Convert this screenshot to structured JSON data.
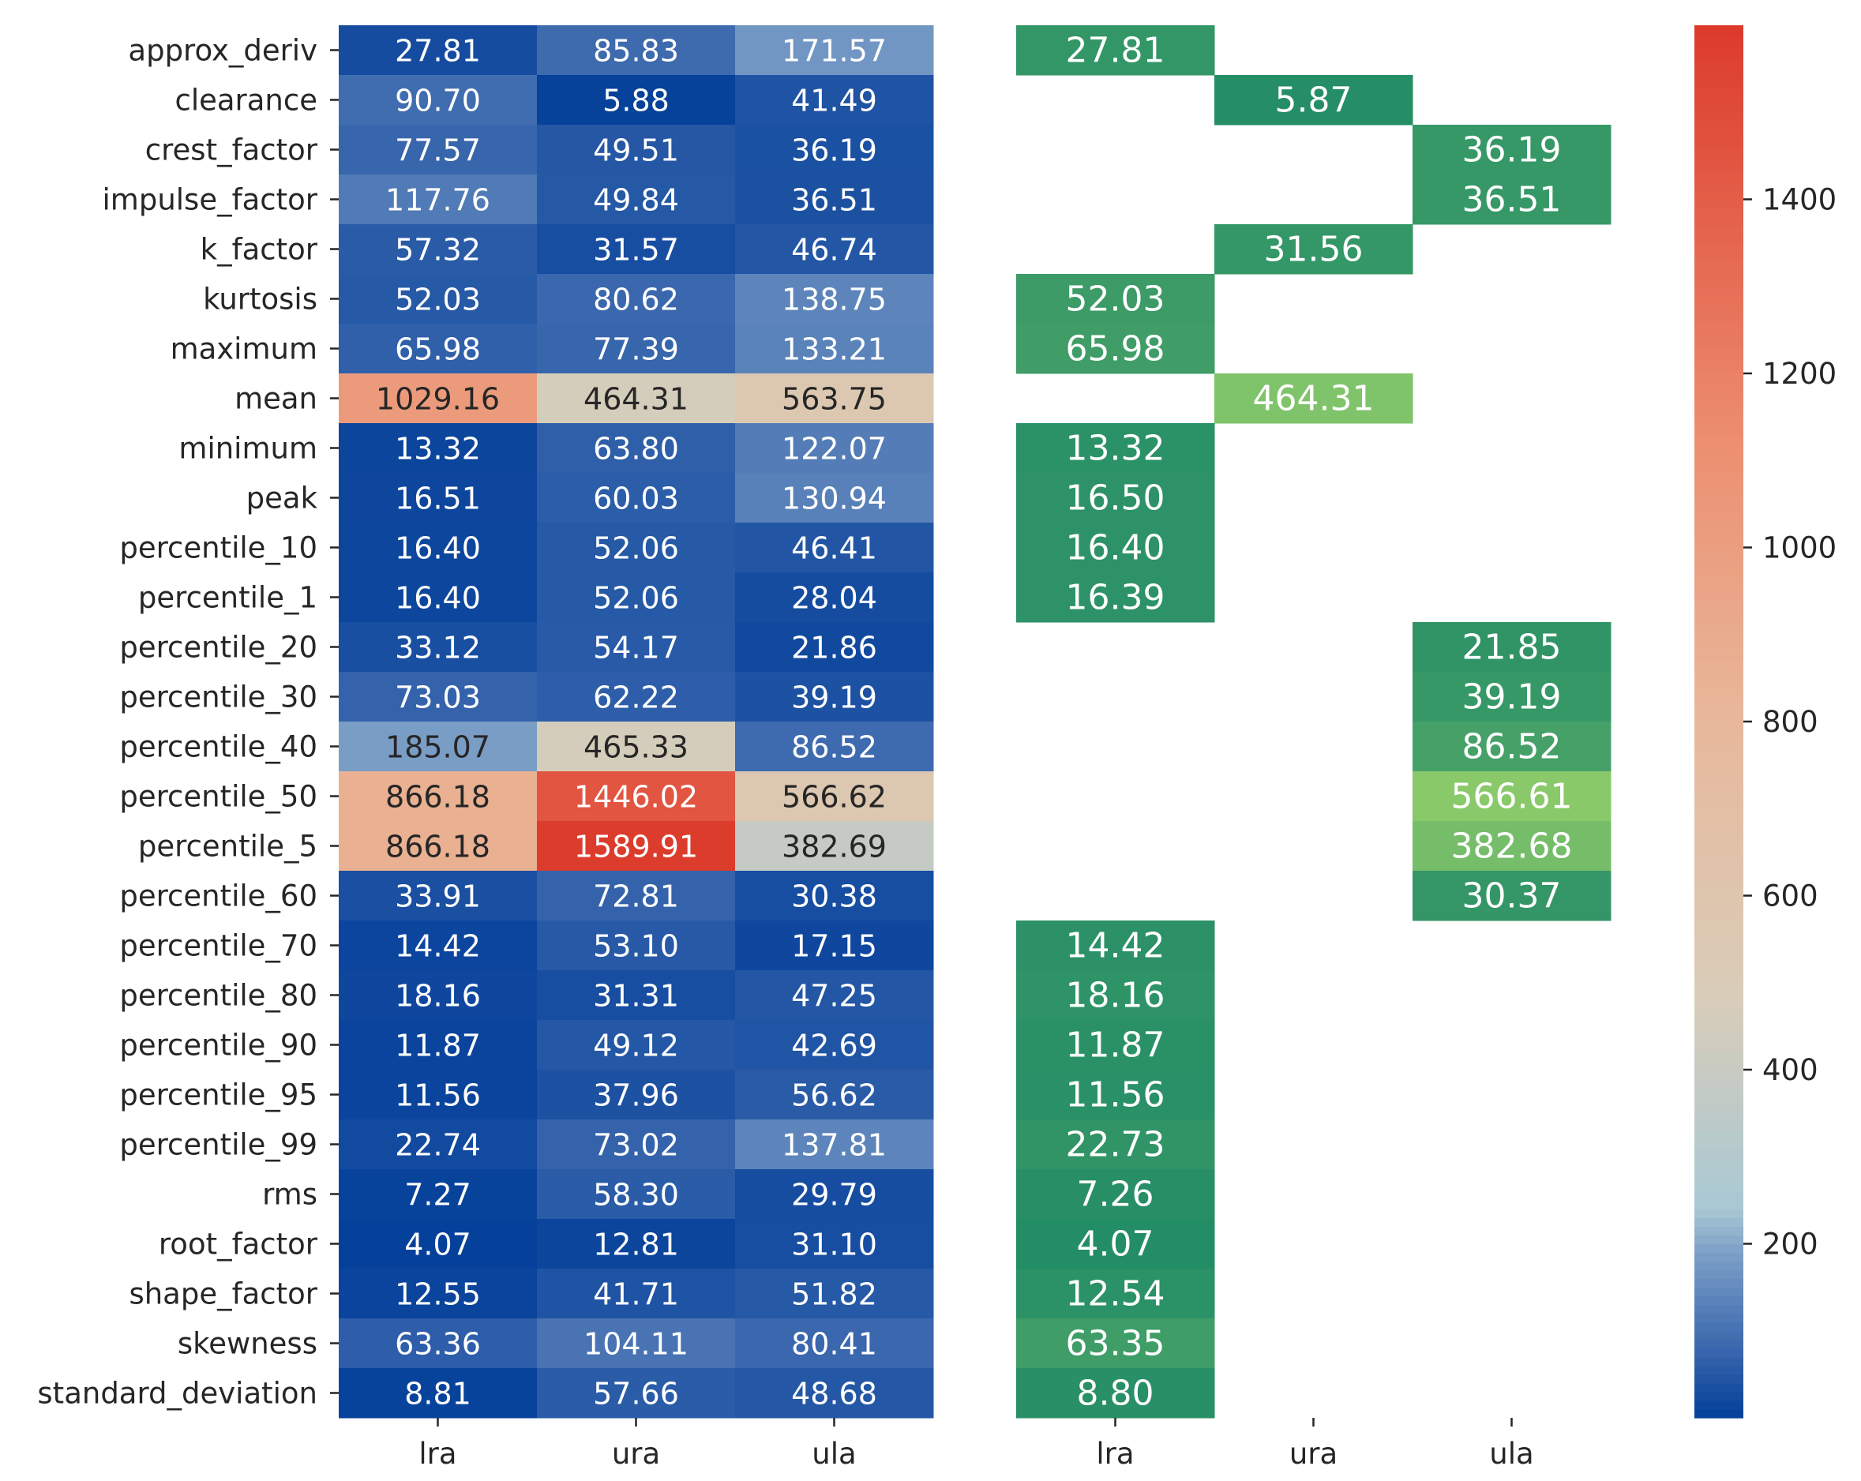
{
  "chart_data": [
    {
      "type": "heatmap",
      "title": "",
      "xlabel": "",
      "ylabel": "",
      "columns": [
        "lra",
        "ura",
        "ula"
      ],
      "rows": [
        "approx_deriv",
        "clearance",
        "crest_factor",
        "impulse_factor",
        "k_factor",
        "kurtosis",
        "maximum",
        "mean",
        "minimum",
        "peak",
        "percentile_10",
        "percentile_1",
        "percentile_20",
        "percentile_30",
        "percentile_40",
        "percentile_50",
        "percentile_5",
        "percentile_60",
        "percentile_70",
        "percentile_80",
        "percentile_90",
        "percentile_95",
        "percentile_99",
        "rms",
        "root_factor",
        "shape_factor",
        "skewness",
        "standard_deviation"
      ],
      "values": [
        [
          27.81,
          85.83,
          171.57
        ],
        [
          90.7,
          5.88,
          41.49
        ],
        [
          77.57,
          49.51,
          36.19
        ],
        [
          117.76,
          49.84,
          36.51
        ],
        [
          57.32,
          31.57,
          46.74
        ],
        [
          52.03,
          80.62,
          138.75
        ],
        [
          65.98,
          77.39,
          133.21
        ],
        [
          1029.16,
          464.31,
          563.75
        ],
        [
          13.32,
          63.8,
          122.07
        ],
        [
          16.51,
          60.03,
          130.94
        ],
        [
          16.4,
          52.06,
          46.41
        ],
        [
          16.4,
          52.06,
          28.04
        ],
        [
          33.12,
          54.17,
          21.86
        ],
        [
          73.03,
          62.22,
          39.19
        ],
        [
          185.07,
          465.33,
          86.52
        ],
        [
          866.18,
          1446.02,
          566.62
        ],
        [
          866.18,
          1589.91,
          382.69
        ],
        [
          33.91,
          72.81,
          30.38
        ],
        [
          14.42,
          53.1,
          17.15
        ],
        [
          18.16,
          31.31,
          47.25
        ],
        [
          11.87,
          49.12,
          42.69
        ],
        [
          11.56,
          37.96,
          56.62
        ],
        [
          22.74,
          73.02,
          137.81
        ],
        [
          7.27,
          58.3,
          29.79
        ],
        [
          4.07,
          12.81,
          31.1
        ],
        [
          12.55,
          41.71,
          51.82
        ],
        [
          63.36,
          104.11,
          80.41
        ],
        [
          8.81,
          57.66,
          48.68
        ]
      ],
      "colormap": {
        "low": "#023e99",
        "mid": "#d9ccb6",
        "high": "#dc3a2b",
        "range": [
          0,
          1600
        ]
      }
    },
    {
      "type": "heatmap",
      "title": "",
      "xlabel": "",
      "ylabel": "",
      "columns": [
        "lra",
        "ura",
        "ula"
      ],
      "rows": [
        "approx_deriv",
        "clearance",
        "crest_factor",
        "impulse_factor",
        "k_factor",
        "kurtosis",
        "maximum",
        "mean",
        "minimum",
        "peak",
        "percentile_10",
        "percentile_1",
        "percentile_20",
        "percentile_30",
        "percentile_40",
        "percentile_50",
        "percentile_5",
        "percentile_60",
        "percentile_70",
        "percentile_80",
        "percentile_90",
        "percentile_95",
        "percentile_99",
        "rms",
        "root_factor",
        "shape_factor",
        "skewness",
        "standard_deviation"
      ],
      "cells": [
        {
          "row": 0,
          "col": 0,
          "value": "27.81"
        },
        {
          "row": 1,
          "col": 1,
          "value": "5.87"
        },
        {
          "row": 2,
          "col": 2,
          "value": "36.19"
        },
        {
          "row": 3,
          "col": 2,
          "value": "36.51"
        },
        {
          "row": 4,
          "col": 1,
          "value": "31.56"
        },
        {
          "row": 5,
          "col": 0,
          "value": "52.03"
        },
        {
          "row": 6,
          "col": 0,
          "value": "65.98"
        },
        {
          "row": 7,
          "col": 1,
          "value": "464.31"
        },
        {
          "row": 8,
          "col": 0,
          "value": "13.32"
        },
        {
          "row": 9,
          "col": 0,
          "value": "16.50"
        },
        {
          "row": 10,
          "col": 0,
          "value": "16.40"
        },
        {
          "row": 11,
          "col": 0,
          "value": "16.39"
        },
        {
          "row": 12,
          "col": 2,
          "value": "21.85"
        },
        {
          "row": 13,
          "col": 2,
          "value": "39.19"
        },
        {
          "row": 14,
          "col": 2,
          "value": "86.52"
        },
        {
          "row": 15,
          "col": 2,
          "value": "566.61"
        },
        {
          "row": 16,
          "col": 2,
          "value": "382.68"
        },
        {
          "row": 17,
          "col": 2,
          "value": "30.37"
        },
        {
          "row": 18,
          "col": 0,
          "value": "14.42"
        },
        {
          "row": 19,
          "col": 0,
          "value": "18.16"
        },
        {
          "row": 20,
          "col": 0,
          "value": "11.87"
        },
        {
          "row": 21,
          "col": 0,
          "value": "11.56"
        },
        {
          "row": 22,
          "col": 0,
          "value": "22.73"
        },
        {
          "row": 23,
          "col": 0,
          "value": "7.26"
        },
        {
          "row": 24,
          "col": 0,
          "value": "4.07"
        },
        {
          "row": 25,
          "col": 0,
          "value": "12.54"
        },
        {
          "row": 26,
          "col": 0,
          "value": "63.35"
        },
        {
          "row": 27,
          "col": 0,
          "value": "8.80"
        }
      ],
      "colormap": {
        "low": "#1a8766",
        "high": "#8ac96a",
        "range": [
          0,
          570
        ]
      }
    },
    {
      "type": "colorbar",
      "ticks": [
        200,
        400,
        600,
        800,
        1000,
        1200,
        1400
      ],
      "range": [
        0,
        1600
      ]
    }
  ]
}
